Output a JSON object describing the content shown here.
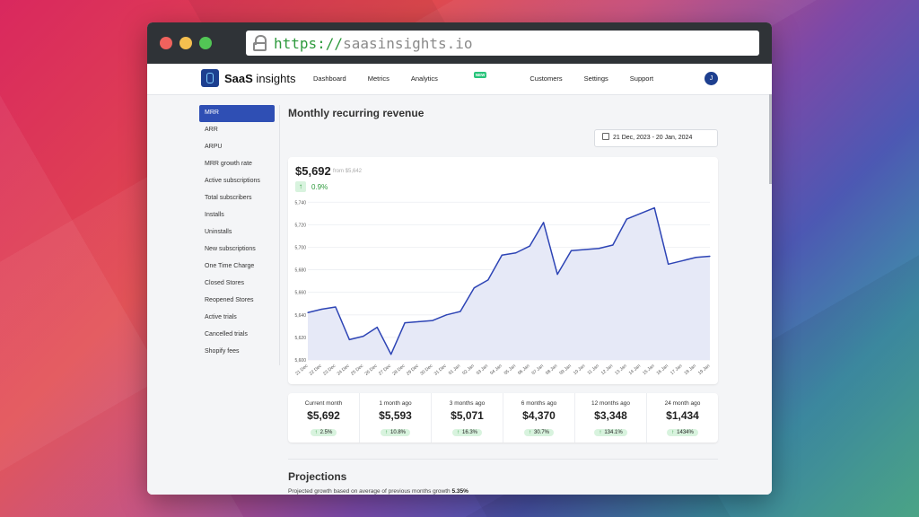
{
  "browser": {
    "url_protocol": "https://",
    "url_host": "saasinsights.io"
  },
  "topnav": {
    "brand_bold": "SaaS",
    "brand_rest": " insights",
    "links": [
      "Dashboard",
      "Metrics",
      "Analytics",
      "Customers",
      "Settings",
      "Support"
    ],
    "new_badge": "NEW",
    "avatar_initial": "J"
  },
  "sidebar": {
    "items": [
      "MRR",
      "ARR",
      "ARPU",
      "MRR growth rate",
      "Active subscriptions",
      "Total subscribers",
      "Installs",
      "Uninstalls",
      "New subscriptions",
      "One Time Charge",
      "Closed Stores",
      "Reopened Stores",
      "Active trials",
      "Cancelled trials",
      "Shopify fees"
    ],
    "active_index": 0
  },
  "main": {
    "title": "Monthly recurring revenue",
    "date_range": "21 Dec, 2023 - 20 Jan, 2024",
    "current_value": "$5,692",
    "from_text": "from $5,642",
    "change_pct": "0.9%"
  },
  "chart_data": {
    "type": "area",
    "x": [
      "21 Dec",
      "22 Dec",
      "23 Dec",
      "24 Dec",
      "25 Dec",
      "26 Dec",
      "27 Dec",
      "28 Dec",
      "29 Dec",
      "30 Dec",
      "31 Dec",
      "01 Jan",
      "02 Jan",
      "03 Jan",
      "04 Jan",
      "05 Jan",
      "06 Jan",
      "07 Jan",
      "08 Jan",
      "09 Jan",
      "10 Jan",
      "11 Jan",
      "12 Jan",
      "13 Jan",
      "14 Jan",
      "15 Jan",
      "16 Jan",
      "17 Jan",
      "18 Jan",
      "19 Jan"
    ],
    "series": [
      {
        "values": [
          5642,
          5645,
          5647,
          5618,
          5621,
          5629,
          5605,
          5633,
          5634,
          5635,
          5640,
          5643,
          5664,
          5671,
          5693,
          5695,
          5701,
          5722,
          5676,
          5697,
          5698,
          5699,
          5702,
          5725,
          5730,
          5735,
          5685,
          5688,
          5691,
          5692
        ]
      }
    ],
    "y_ticks": [
      5600,
      5620,
      5640,
      5660,
      5680,
      5700,
      5720,
      5740
    ],
    "ylim": [
      5600,
      5745
    ],
    "grid": true,
    "color": "#2d44b5",
    "fill": "#e6e9f7"
  },
  "stats": [
    {
      "label": "Current month",
      "value": "$5,692",
      "change": "2.5%"
    },
    {
      "label": "1 month ago",
      "value": "$5,593",
      "change": "10.8%"
    },
    {
      "label": "3 months ago",
      "value": "$5,071",
      "change": "16.3%"
    },
    {
      "label": "6 months ago",
      "value": "$4,370",
      "change": "30.7%"
    },
    {
      "label": "12 months ago",
      "value": "$3,348",
      "change": "134.1%"
    },
    {
      "label": "24 month ago",
      "value": "$1,434",
      "change": "1434%"
    }
  ],
  "projections": {
    "title": "Projections",
    "text": "Projected growth based on average of previous months growth",
    "value": "5.35%"
  },
  "colors": {
    "accent": "#2f4fb4",
    "positive": "#2e9a3d"
  }
}
